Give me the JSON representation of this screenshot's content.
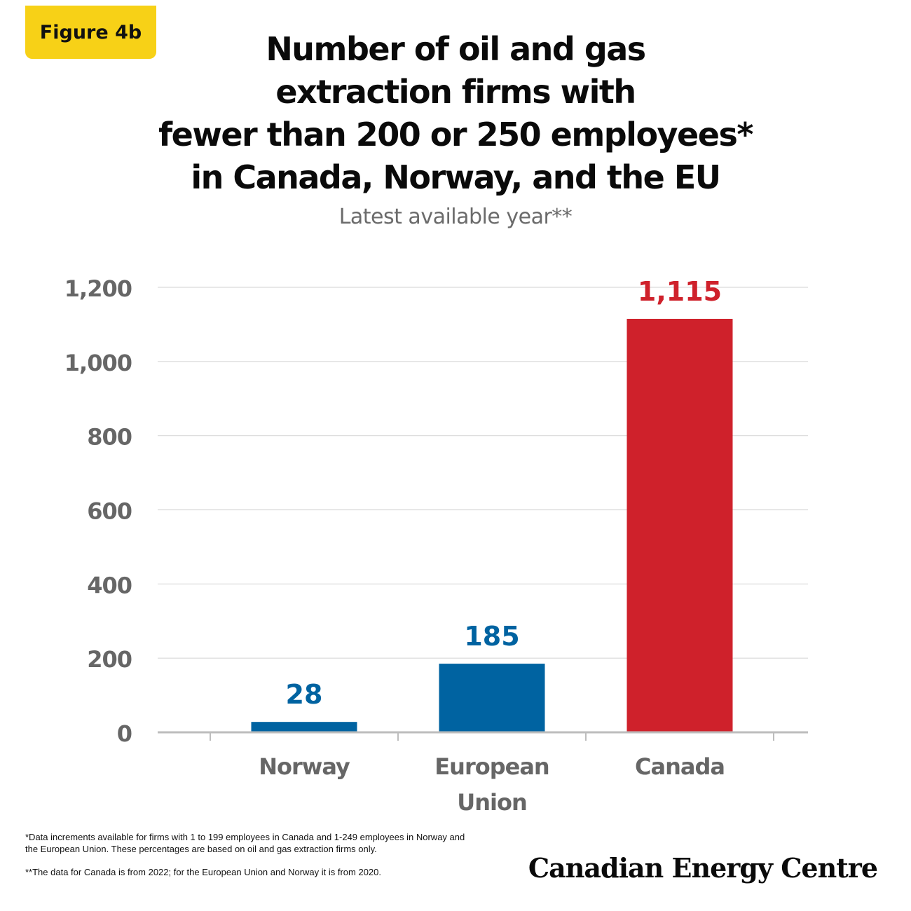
{
  "badge": "Figure 4b",
  "title_lines": [
    "Number of oil and gas",
    "extraction firms with",
    "fewer than 200 or 250 employees*",
    "in Canada, Norway, and the EU"
  ],
  "subtitle": "Latest available year**",
  "chart_data": {
    "type": "bar",
    "categories": [
      [
        "Norway"
      ],
      [
        "European",
        "Union"
      ],
      [
        "Canada"
      ]
    ],
    "values": [
      28,
      185,
      1115
    ],
    "value_labels": [
      "28",
      "185",
      "1,115"
    ],
    "colors": [
      "#0063a1",
      "#0063a1",
      "#cf212b"
    ],
    "y_ticks": [
      0,
      200,
      400,
      600,
      800,
      1000,
      1200
    ],
    "y_tick_labels": [
      "0",
      "200",
      "400",
      "600",
      "800",
      "1,000",
      "1,200"
    ],
    "ylim": [
      0,
      1200
    ],
    "grid": true,
    "xlabel": "",
    "ylabel": ""
  },
  "footnotes": [
    "*Data increments available for firms with 1 to 199 employees in Canada and 1-249 employees in Norway and the European Union. These percentages are based on oil and gas extraction firms only.",
    "**The data for Canada is from 2022; for the European Union and Norway it is from 2020."
  ],
  "brand": "Canadian Energy Centre"
}
